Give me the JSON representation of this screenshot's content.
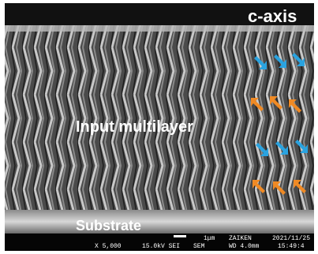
{
  "labels": {
    "axis": "c-axis",
    "layer": "Input multilayer",
    "substrate": "Substrate"
  },
  "info_bar": {
    "scale": "1μm",
    "lab": "ZAIKEN",
    "date": "2021/11/25",
    "magnification": "X 5,000",
    "voltage": "15.0kV SEI",
    "mode": "SEM",
    "wd": "WD 4.0mm",
    "time": "15:49:4"
  }
}
